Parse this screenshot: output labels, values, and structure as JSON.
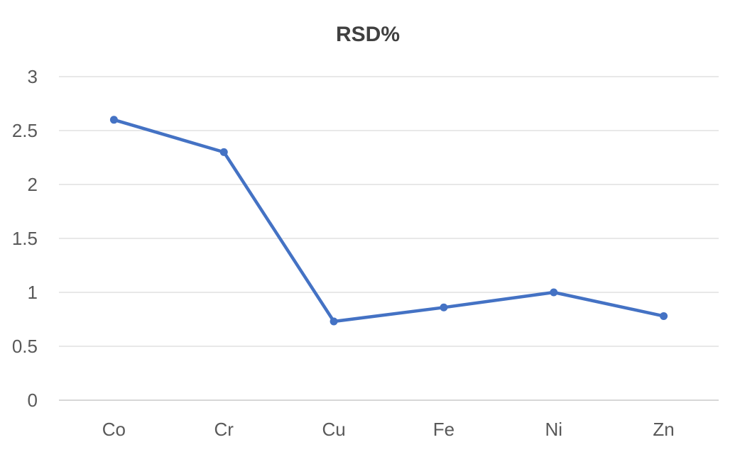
{
  "chart_data": {
    "type": "line",
    "title": "RSD%",
    "xlabel": "",
    "ylabel": "",
    "categories": [
      "Co",
      "Cr",
      "Cu",
      "Fe",
      "Ni",
      "Zn"
    ],
    "series": [
      {
        "values": [
          2.6,
          2.3,
          0.73,
          0.86,
          1.0,
          0.78
        ],
        "color": "#4472c4"
      }
    ],
    "yticks": [
      0,
      0.5,
      1,
      1.5,
      2,
      2.5,
      3
    ],
    "ytick_labels": [
      "0",
      "0.5",
      "1",
      "1.5",
      "2",
      "2.5",
      "3"
    ],
    "ylim": [
      0,
      3
    ],
    "grid": true,
    "legend": "none",
    "marker": "circle"
  }
}
